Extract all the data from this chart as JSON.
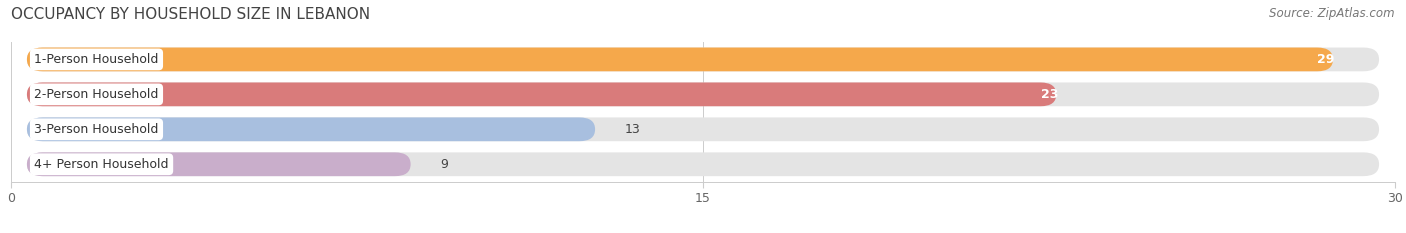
{
  "title": "OCCUPANCY BY HOUSEHOLD SIZE IN LEBANON",
  "source": "Source: ZipAtlas.com",
  "categories": [
    "1-Person Household",
    "2-Person Household",
    "3-Person Household",
    "4+ Person Household"
  ],
  "values": [
    29,
    23,
    13,
    9
  ],
  "bar_colors": [
    "#F5A84B",
    "#D97B7B",
    "#A8BFDF",
    "#C9AECB"
  ],
  "bar_bg_color": "#E4E4E4",
  "value_label_inside": [
    true,
    true,
    false,
    false
  ],
  "xlim": [
    0,
    30
  ],
  "xticks": [
    0,
    15,
    30
  ],
  "title_fontsize": 11,
  "source_fontsize": 8.5,
  "bar_label_fontsize": 9,
  "category_fontsize": 9,
  "figsize": [
    14.06,
    2.33
  ],
  "dpi": 100,
  "bar_height": 0.68,
  "background_color": "#FFFFFF",
  "label_box_color": "#FFFFFF",
  "grid_color": "#CCCCCC"
}
